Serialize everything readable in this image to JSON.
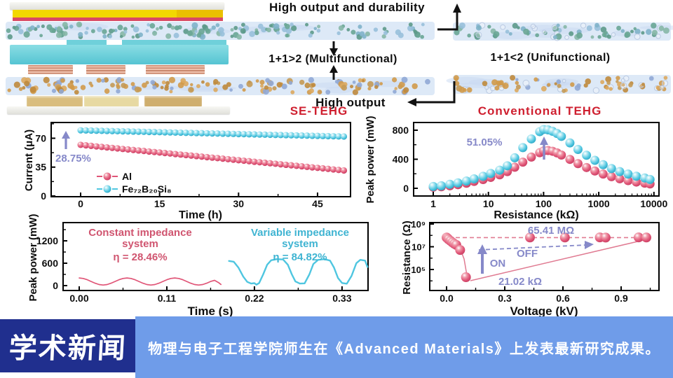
{
  "palette": {
    "red": "#e05577",
    "cyan": "#4fc6e0",
    "purple": "#8689c9",
    "pink_line": "#e07b92",
    "title_red": "#cf2030",
    "axis": "#111111"
  },
  "diagram": {
    "labels": {
      "high_output_durability": "High output and durability",
      "multifunctional": "1+1>2 (Multifunctional)",
      "unifunctional": "1+1<2 (Unifunctional)",
      "high_output": "High output"
    },
    "headers": {
      "left": "SE-TEHG",
      "right": "Conventional TEHG"
    },
    "colors": {
      "strip_bg": "#dde9f7",
      "strip_hollow": "#b9c9e2",
      "streak": "#c9d9f2",
      "strip_green": [
        "#69a695",
        "#5d9a89",
        "#7fb3c9",
        "#98c0da",
        "#86b7a6"
      ],
      "strip_orange": [
        "#d09a4a",
        "#bf8a3c",
        "#dca85e",
        "#90a9d5",
        "#c49a55"
      ]
    }
  },
  "banner": {
    "badge": "学术新闻",
    "text": "物理与电子工程学院师生在《Advanced Materials》上发表最新研究成果。",
    "badge_bg": "#202f8e",
    "bar_bg": "#6f9ce9",
    "text_color": "#ffffff"
  },
  "chart_data": [
    {
      "id": "current-stability",
      "type": "scatter",
      "xlabel": "Time (h)",
      "ylabel": "Current (μA)",
      "xticks": [
        0,
        15,
        30,
        45
      ],
      "yticks": [
        0,
        35,
        70
      ],
      "xlim": [
        -5.5,
        51.5
      ],
      "ylim": [
        0,
        89
      ],
      "annotation": {
        "text": "28.75%"
      },
      "series": [
        {
          "name": "Al",
          "color": "red",
          "x0": 0,
          "dx": 1,
          "y": [
            62,
            61.4,
            60.8,
            60.1,
            59.5,
            58.9,
            58.3,
            57.7,
            57,
            56.4,
            55.8,
            55.2,
            54.6,
            53.9,
            53.3,
            52.7,
            52.1,
            51.5,
            50.8,
            50.2,
            49.6,
            49,
            48.4,
            47.7,
            47.1,
            46.5,
            45.9,
            45.3,
            44.6,
            44,
            43.4,
            42.8,
            42.2,
            41.5,
            40.9,
            40.3,
            39.7,
            39.1,
            38.4,
            37.8,
            37.2,
            36.6,
            36,
            35.3,
            34.7,
            34.1,
            33.5,
            32.9,
            32.2,
            31.6,
            31
          ]
        },
        {
          "name": "Fe₇₂B₂₀Si₈",
          "color": "cyan",
          "x0": 0,
          "dx": 1,
          "y": [
            79.6,
            79.45,
            79.3,
            79.15,
            79,
            78.85,
            78.7,
            78.55,
            78.4,
            78.25,
            78.1,
            77.95,
            77.8,
            77.65,
            77.5,
            77.35,
            77.2,
            77.05,
            76.9,
            76.75,
            76.6,
            76.45,
            76.3,
            76.15,
            76,
            75.85,
            75.7,
            75.55,
            75.4,
            75.25,
            75.1,
            74.95,
            74.8,
            74.65,
            74.5,
            74.35,
            74.2,
            74.05,
            73.9,
            73.75,
            73.6,
            73.45,
            73.3,
            73.15,
            73,
            72.85,
            72.7,
            72.55,
            72.4,
            72.25,
            72.1
          ]
        }
      ]
    },
    {
      "id": "peak-power-vs-resistance",
      "type": "scatter",
      "xscale": "log",
      "xlabel": "Resistance (kΩ)",
      "ylabel": "Peak power (mW)",
      "xticks": [
        1,
        10,
        100,
        1000,
        10000
      ],
      "yticks": [
        0,
        400,
        800
      ],
      "ylim": [
        -95,
        870
      ],
      "annotation": {
        "text": "51.05%"
      },
      "series": [
        {
          "name": "Conventional TEHG",
          "color": "red",
          "x": [
            1,
            1.4,
            2,
            2.8,
            4,
            5.5,
            8,
            11,
            16,
            22,
            30,
            42,
            60,
            85,
            100,
            120,
            145,
            175,
            210,
            300,
            420,
            600,
            850,
            1200,
            1700,
            2400,
            3400,
            4800,
            6800,
            8500
          ],
          "y": [
            15,
            22,
            35,
            50,
            70,
            95,
            120,
            150,
            185,
            230,
            290,
            360,
            430,
            490,
            515,
            520,
            510,
            488,
            458,
            398,
            340,
            286,
            238,
            196,
            160,
            131,
            106,
            86,
            71,
            60
          ]
        },
        {
          "name": "SE-TEHG",
          "color": "cyan",
          "x": [
            1,
            1.4,
            2,
            2.8,
            4,
            5.5,
            8,
            11,
            16,
            22,
            30,
            42,
            60,
            85,
            100,
            120,
            145,
            175,
            210,
            300,
            420,
            600,
            850,
            1200,
            1700,
            2400,
            3400,
            4800,
            6800,
            8500
          ],
          "y": [
            25,
            35,
            55,
            75,
            100,
            130,
            165,
            205,
            250,
            310,
            420,
            560,
            680,
            780,
            810,
            805,
            785,
            755,
            715,
            625,
            535,
            455,
            385,
            325,
            272,
            230,
            196,
            166,
            142,
            122
          ]
        }
      ]
    },
    {
      "id": "impedance-matching",
      "type": "line",
      "xlabel": "Time (s)",
      "ylabel": "Peak power (mW)",
      "xticks": [
        0,
        0.11,
        0.22,
        0.33
      ],
      "xtick_labels": [
        "0.00",
        "0.11",
        "0.22",
        "0.33"
      ],
      "yticks": [
        0,
        600,
        1200
      ],
      "ylim": [
        0,
        1680
      ],
      "series": [
        {
          "label_lines": [
            "Constant impedance",
            "system"
          ],
          "eta": "η = 28.46%",
          "color": "red",
          "points": [
            [
              0,
              205
            ],
            [
              0.005,
              192
            ],
            [
              0.01,
              158
            ],
            [
              0.015,
              110
            ],
            [
              0.02,
              63
            ],
            [
              0.025,
              28
            ],
            [
              0.03,
              15
            ],
            [
              0.035,
              28
            ],
            [
              0.04,
              63
            ],
            [
              0.045,
              110
            ],
            [
              0.05,
              158
            ],
            [
              0.055,
              192
            ],
            [
              0.06,
              205
            ],
            [
              0.065,
              192
            ],
            [
              0.07,
              158
            ],
            [
              0.075,
              110
            ],
            [
              0.08,
              63
            ],
            [
              0.085,
              28
            ],
            [
              0.09,
              15
            ],
            [
              0.095,
              28
            ],
            [
              0.1,
              63
            ],
            [
              0.105,
              110
            ],
            [
              0.11,
              158
            ],
            [
              0.115,
              192
            ],
            [
              0.12,
              205
            ],
            [
              0.125,
              192
            ],
            [
              0.13,
              158
            ],
            [
              0.135,
              110
            ],
            [
              0.14,
              63
            ],
            [
              0.145,
              28
            ],
            [
              0.15,
              15
            ],
            [
              0.155,
              28
            ],
            [
              0.16,
              63
            ],
            [
              0.165,
              110
            ],
            [
              0.17,
              140
            ],
            [
              0.175,
              80
            ],
            [
              0.178,
              30
            ]
          ]
        },
        {
          "label_lines": [
            "Variable impedance",
            "system"
          ],
          "eta": "η = 84.82%",
          "color": "cyan",
          "points": [
            [
              0.188,
              660
            ],
            [
              0.194,
              640
            ],
            [
              0.2,
              480
            ],
            [
              0.206,
              240
            ],
            [
              0.211,
              100
            ],
            [
              0.216,
              55
            ],
            [
              0.22,
              65
            ],
            [
              0.2225,
              25
            ],
            [
              0.226,
              70
            ],
            [
              0.231,
              300
            ],
            [
              0.236,
              560
            ],
            [
              0.241,
              680
            ],
            [
              0.248,
              710
            ],
            [
              0.256,
              700
            ],
            [
              0.262,
              560
            ],
            [
              0.267,
              300
            ],
            [
              0.2715,
              110
            ],
            [
              0.277,
              55
            ],
            [
              0.283,
              60
            ],
            [
              0.289,
              300
            ],
            [
              0.294,
              580
            ],
            [
              0.3,
              690
            ],
            [
              0.308,
              710
            ],
            [
              0.315,
              670
            ],
            [
              0.32,
              480
            ],
            [
              0.325,
              200
            ],
            [
              0.33,
              70
            ],
            [
              0.336,
              50
            ],
            [
              0.342,
              260
            ],
            [
              0.348,
              600
            ],
            [
              0.353,
              690
            ],
            [
              0.359,
              670
            ],
            [
              0.362,
              500
            ]
          ]
        }
      ]
    },
    {
      "id": "switch-resistance",
      "type": "scatter",
      "yscale": "log",
      "color": "red",
      "xlabel": "Voltage (kV)",
      "ylabel": "Resistance (Ω)",
      "xticks": [
        0,
        0.3,
        0.6,
        0.9
      ],
      "xtick_labels": [
        "0.0",
        "0.3",
        "0.6",
        "0.9"
      ],
      "ytick_labels": [
        {
          "v": 100000,
          "t": "10⁵"
        },
        {
          "v": 10000000,
          "t": "10⁷"
        },
        {
          "v": 1000000000,
          "t": "10⁹"
        }
      ],
      "points": [
        [
          0,
          65000000
        ],
        [
          0.005,
          55000000
        ],
        [
          0.01,
          45000000
        ],
        [
          0.02,
          33000000
        ],
        [
          0.03,
          24000000
        ],
        [
          0.04,
          18000000
        ],
        [
          0.05,
          14500000
        ],
        [
          0.07,
          5200000
        ],
        [
          0.1,
          21020
        ],
        [
          0.43,
          65000000
        ],
        [
          0.61,
          65000000
        ],
        [
          0.79,
          66000000
        ],
        [
          0.82,
          64000000
        ],
        [
          0.99,
          66000000
        ],
        [
          1.03,
          65000000
        ]
      ],
      "annotations": {
        "max": "65.41 MΩ",
        "min": "21.02 kΩ",
        "off": "OFF",
        "on": "ON"
      }
    }
  ]
}
